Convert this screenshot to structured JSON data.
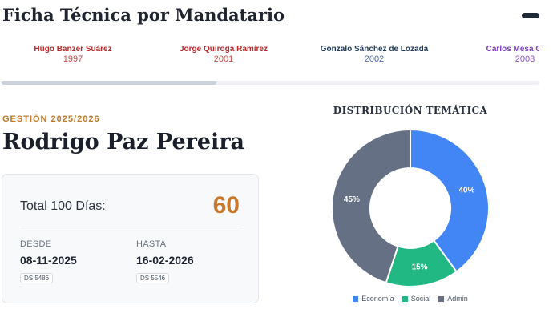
{
  "header": {
    "title": "Ficha Técnica por Mandatario"
  },
  "timeline": [
    {
      "name": "Hugo Banzer Suárez",
      "year": "1997",
      "name_color": "#b42b2b",
      "year_color": "#d14848"
    },
    {
      "name": "Jorge Quiroga Ramírez",
      "year": "2001",
      "name_color": "#b42b2b",
      "year_color": "#d14848"
    },
    {
      "name": "Gonzalo Sánchez de Lozada",
      "year": "2002",
      "name_color": "#1f3a5a",
      "year_color": "#5468b8"
    },
    {
      "name": "Carlos Mesa Gisbert",
      "year": "2003",
      "name_color": "#7d3fc9",
      "year_color": "#8f56d8"
    }
  ],
  "scroll": {
    "position_fraction": 0.4
  },
  "profile": {
    "term_label": "GESTIÓN 2025/2026",
    "name": "Rodrigo Paz Pereira"
  },
  "summary_card": {
    "total_label": "Total 100 Días:",
    "total_value": "60",
    "from": {
      "label": "DESDE",
      "date": "08-11-2025",
      "decree": "DS 5486"
    },
    "to": {
      "label": "HASTA",
      "date": "16-02-2026",
      "decree": "DS 5546"
    }
  },
  "chart_data": {
    "type": "pie",
    "title": "DISTRIBUCIÓN TEMÁTICA",
    "categories": [
      "Economía",
      "Social",
      "Admin"
    ],
    "values": [
      40,
      15,
      45
    ],
    "labels": [
      "40%",
      "15%",
      "45%"
    ],
    "colors": [
      "#4285f4",
      "#22b883",
      "#667085"
    ],
    "legend": "bottom"
  }
}
